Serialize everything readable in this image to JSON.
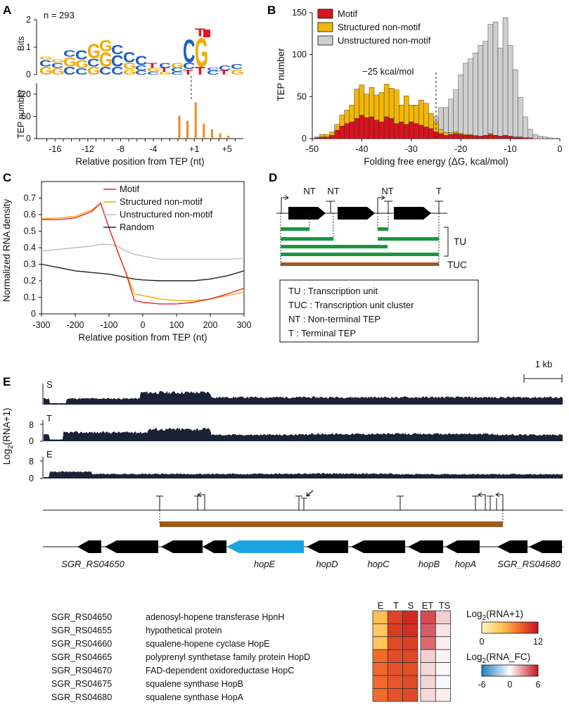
{
  "panels": {
    "A": {
      "label": "A",
      "n_text": "n = 293",
      "logo_ylabel": "Bits",
      "logo_yticks": [
        "0",
        "1",
        "2"
      ],
      "hist_ylabel": "TEP number",
      "hist_yticks": [
        "0",
        "60",
        "120"
      ],
      "xlabel": "Relative position from TEP (nt)",
      "xticks": [
        "-16",
        "-12",
        "-8",
        "-4",
        "+1",
        "+5"
      ],
      "logo_top_letters": [
        "G",
        "C",
        "C",
        "G",
        "G",
        "G",
        "C",
        "C",
        "C",
        "T",
        "C",
        "G",
        "C",
        "G",
        "T",
        "C",
        "C"
      ],
      "logo_colors": {
        "A": "#2ea043",
        "C": "#1f5fbf",
        "G": "#f2a900",
        "T": "#e8141e"
      }
    },
    "B": {
      "label": "B",
      "ylabel": "TEP number",
      "xlabel": "Folding free energy (ΔG, kcal/mol)",
      "yticks": [
        "0",
        "50",
        "100",
        "150"
      ],
      "xticks": [
        "-50",
        "-40",
        "-30",
        "-20",
        "-10",
        "0"
      ],
      "annotation": "−25 kcal/mol",
      "legend": [
        {
          "label": "Motif",
          "color": "#d7141e"
        },
        {
          "label": "Structured non-motif",
          "color": "#f2b705"
        },
        {
          "label": "Unstructured non-motif",
          "color": "#cfcfcf"
        }
      ]
    },
    "C": {
      "label": "C",
      "ylabel": "Normalized RNA density",
      "xlabel": "Relative position from TEP (nt)",
      "yticks": [
        "0",
        "0.1",
        "0.2",
        "0.3",
        "0.4",
        "0.5",
        "0.6",
        "0.7"
      ],
      "xticks": [
        "-300",
        "-200",
        "-100",
        "0",
        "100",
        "200",
        "300"
      ],
      "legend": [
        {
          "label": "Motif",
          "color": "#e4262c"
        },
        {
          "label": "Structured non-motif",
          "color": "#f2a900"
        },
        {
          "label": "Unstructured non-motif",
          "color": "#bdbdbd"
        },
        {
          "label": "Random",
          "color": "#222222"
        }
      ]
    },
    "D": {
      "label": "D",
      "tep_labels": [
        "NT",
        "NT",
        "NT",
        "T"
      ],
      "bracket_labels": [
        "TU",
        "TUC"
      ],
      "definitions": [
        "TU : Transcription unit",
        "TUC : Transcription unit cluster",
        "NT : Non-terminal TEP",
        "T : Terminal TEP"
      ],
      "colors": {
        "tu": "#1a9641",
        "tuc": "#9c5a1f",
        "gene": "#000000"
      }
    },
    "E": {
      "label": "E",
      "scale_bar": "1 kb",
      "ylabel": "Log2(RNA+1)",
      "tracks": [
        {
          "name": "S",
          "ytick_top": "",
          "ytick_bottom": ""
        },
        {
          "name": "T",
          "ytick_top": "8",
          "ytick_bottom": "0"
        },
        {
          "name": "E",
          "ytick_top": "8",
          "ytick_bottom": "0"
        }
      ],
      "gene_labels": [
        "SGR_RS04650",
        "hopE",
        "hopD",
        "hopC",
        "hopB",
        "hopA",
        "SGR_RS04680"
      ],
      "highlight_color": "#1ba5e0",
      "genes_table": [
        {
          "id": "SGR_RS04650",
          "desc": "adenosyl-hopene transferase HpnH"
        },
        {
          "id": "SGR_RS04655",
          "desc": "hypothetical protein"
        },
        {
          "id": "SGR_RS04660",
          "desc": "squalene-hopene cyclase HopE"
        },
        {
          "id": "SGR_RS04665",
          "desc": "polyprenyl synthetase family protein HopD"
        },
        {
          "id": "SGR_RS04670",
          "desc": "FAD-dependent oxidoreductase HopC"
        },
        {
          "id": "SGR_RS04675",
          "desc": "squalene synthase HopB"
        },
        {
          "id": "SGR_RS04680",
          "desc": "squalene synthase HopA"
        }
      ],
      "heatmap_cols": [
        "E",
        "T",
        "S"
      ],
      "heatmap_fc_cols": [
        "ET",
        "TS"
      ],
      "heatmap_values": [
        [
          4.5,
          9.8,
          11.0
        ],
        [
          4.0,
          10.2,
          10.8
        ],
        [
          4.2,
          9.5,
          10.0
        ],
        [
          8.0,
          9.4,
          9.6
        ],
        [
          8.2,
          9.2,
          9.3
        ],
        [
          8.1,
          9.0,
          9.4
        ],
        [
          8.0,
          9.1,
          9.5
        ]
      ],
      "heatmap_fc_values": [
        [
          4.6,
          1.3
        ],
        [
          4.2,
          0.7
        ],
        [
          3.8,
          0.4
        ],
        [
          1.2,
          0.3
        ],
        [
          1.0,
          0.2
        ],
        [
          1.1,
          -0.3
        ],
        [
          1.0,
          0.4
        ]
      ],
      "cbar1": {
        "title_main": "Log",
        "title_sub": "2",
        "title_rest": "(RNA+1)",
        "min": "0",
        "max": "12"
      },
      "cbar2": {
        "title_main": "Log",
        "title_sub": "2",
        "title_rest": "(RNA_FC)",
        "min": "-6",
        "mid": "0",
        "max": "6"
      }
    }
  },
  "chart_data": [
    {
      "type": "bar",
      "panel": "A",
      "title": "",
      "xlabel": "Relative position from TEP (nt)",
      "ylabel": "TEP number",
      "x": [
        -1,
        0,
        1,
        2,
        3,
        4,
        5
      ],
      "values": [
        62,
        48,
        98,
        40,
        25,
        14,
        8
      ],
      "ylim": [
        0,
        150
      ],
      "xlim": [
        -18,
        7
      ]
    },
    {
      "type": "bar",
      "panel": "B",
      "title": "",
      "xlabel": "Folding free energy (ΔG, kcal/mol)",
      "ylabel": "TEP number",
      "xlim": [
        -50,
        0
      ],
      "ylim": [
        0,
        150
      ],
      "bin_width": 1,
      "x": [
        -49,
        -48,
        -47,
        -46,
        -45,
        -44,
        -43,
        -42,
        -41,
        -40,
        -39,
        -38,
        -37,
        -36,
        -35,
        -34,
        -33,
        -32,
        -31,
        -30,
        -29,
        -28,
        -27,
        -26,
        -25,
        -24,
        -23,
        -22,
        -21,
        -20,
        -19,
        -18,
        -17,
        -16,
        -15,
        -14,
        -13,
        -12,
        -11,
        -10,
        -9,
        -8,
        -7,
        -6,
        -5,
        -4,
        -3,
        -2,
        -1
      ],
      "series": [
        {
          "name": "Motif",
          "values": [
            1,
            2,
            2,
            4,
            10,
            15,
            18,
            20,
            24,
            28,
            25,
            26,
            22,
            20,
            26,
            24,
            18,
            20,
            17,
            20,
            18,
            16,
            14,
            12,
            8,
            6,
            4,
            5,
            6,
            5,
            4,
            4,
            3,
            3,
            4,
            5,
            4,
            3,
            4,
            3,
            2,
            2,
            1,
            1,
            0,
            0,
            0,
            0,
            0
          ]
        },
        {
          "name": "Structured non-motif",
          "values": [
            1,
            3,
            3,
            4,
            7,
            13,
            16,
            20,
            35,
            36,
            28,
            35,
            30,
            35,
            39,
            36,
            40,
            20,
            34,
            20,
            22,
            30,
            28,
            18,
            12,
            5,
            3,
            2,
            2,
            1,
            1,
            1,
            1,
            0,
            0,
            1,
            0,
            0,
            0,
            0,
            0,
            0,
            0,
            0,
            0,
            0,
            0,
            0,
            0
          ]
        },
        {
          "name": "Unstructured non-motif",
          "values": [
            0,
            0,
            0,
            0,
            0,
            0,
            0,
            0,
            0,
            0,
            0,
            0,
            0,
            0,
            0,
            0,
            0,
            0,
            0,
            0,
            0,
            0,
            0,
            0,
            6,
            26,
            30,
            40,
            50,
            70,
            85,
            90,
            98,
            108,
            112,
            130,
            135,
            105,
            140,
            108,
            80,
            47,
            25,
            10,
            5,
            3,
            2,
            1,
            0
          ]
        }
      ]
    },
    {
      "type": "line",
      "panel": "C",
      "title": "",
      "xlabel": "Relative position from TEP (nt)",
      "ylabel": "Normalized RNA density",
      "xlim": [
        -300,
        300
      ],
      "ylim": [
        0,
        0.8
      ],
      "x": [
        -300,
        -250,
        -200,
        -150,
        -125,
        -100,
        -75,
        -50,
        -25,
        0,
        50,
        100,
        150,
        200,
        250,
        300
      ],
      "series": [
        {
          "name": "Motif",
          "values": [
            0.57,
            0.57,
            0.58,
            0.62,
            0.67,
            0.52,
            0.38,
            0.25,
            0.08,
            0.07,
            0.06,
            0.06,
            0.07,
            0.09,
            0.12,
            0.155
          ]
        },
        {
          "name": "Structured non-motif",
          "values": [
            0.575,
            0.58,
            0.59,
            0.63,
            0.67,
            0.52,
            0.38,
            0.25,
            0.12,
            0.11,
            0.09,
            0.08,
            0.08,
            0.09,
            0.11,
            0.13
          ]
        },
        {
          "name": "Unstructured non-motif",
          "values": [
            0.38,
            0.39,
            0.4,
            0.41,
            0.42,
            0.42,
            0.41,
            0.38,
            0.36,
            0.35,
            0.33,
            0.33,
            0.33,
            0.33,
            0.33,
            0.335
          ]
        },
        {
          "name": "Random",
          "values": [
            0.3,
            0.28,
            0.26,
            0.25,
            0.245,
            0.24,
            0.23,
            0.22,
            0.21,
            0.205,
            0.2,
            0.2,
            0.2,
            0.21,
            0.23,
            0.26
          ]
        }
      ]
    }
  ]
}
